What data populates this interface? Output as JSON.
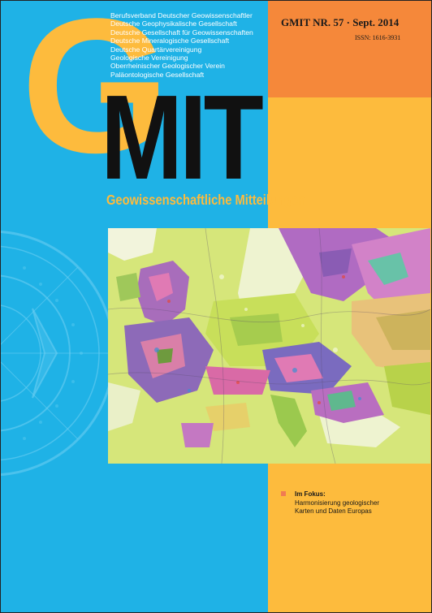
{
  "masthead": {
    "letter_g": "G",
    "letters_mit": "MIT",
    "subtitle": "Geowissenschaftliche Mitteilungen"
  },
  "societies": [
    "Berufsverband Deutscher Geowissenschaftler",
    "Deutsche Geophysikalische Gesellschaft",
    "Deutsche Gesellschaft für Geowissenschaften",
    "Deutsche Mineralogische Gesellschaft",
    "Deutsche Quartärvereinigung",
    "Geologische Vereinigung",
    "Oberrheinischer Geologischer Verein",
    "Paläontologische Gesellschaft"
  ],
  "issue": {
    "label": "GMIT NR. 57 · Sept. 2014",
    "issn": "ISSN: 1616-3931"
  },
  "focus": {
    "heading": "Im Fokus:",
    "line1": "Harmonisierung geologischer",
    "line2": "Karten und Daten Europas"
  },
  "colors": {
    "blue": "#1fb2e6",
    "orange": "#f5883a",
    "yellow": "#fdbb3d",
    "black": "#111111"
  },
  "icons": {
    "seal": "compass-seal-watermark",
    "bullet": "square-bullet-icon"
  }
}
